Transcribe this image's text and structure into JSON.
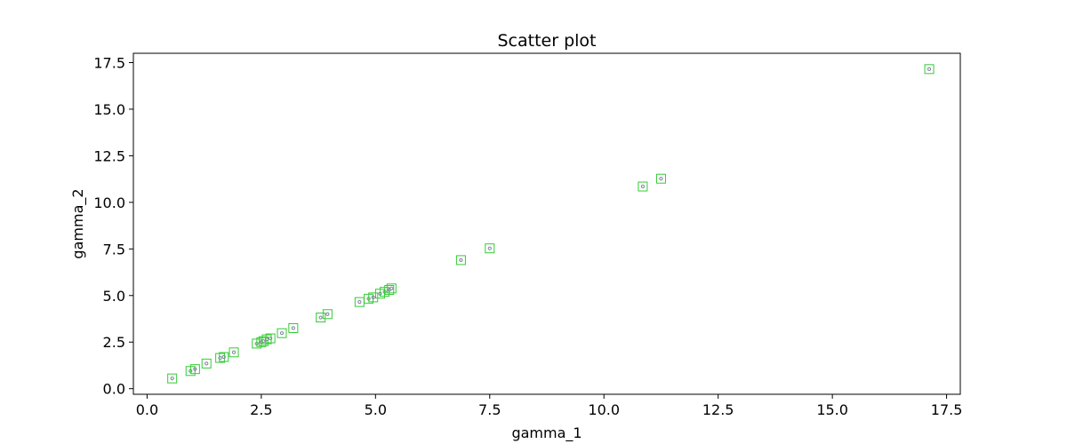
{
  "chart_data": {
    "type": "scatter",
    "title": "Scatter plot",
    "xlabel": "gamma_1",
    "ylabel": "gamma_2",
    "xlim": [
      -0.3,
      17.8
    ],
    "ylim": [
      -0.3,
      18.0
    ],
    "xticks": [
      0.0,
      2.5,
      5.0,
      7.5,
      10.0,
      12.5,
      15.0,
      17.5
    ],
    "xtick_labels": [
      "0.0",
      "2.5",
      "5.0",
      "7.5",
      "10.0",
      "12.5",
      "15.0",
      "17.5"
    ],
    "yticks": [
      0.0,
      2.5,
      5.0,
      7.5,
      10.0,
      12.5,
      15.0,
      17.5
    ],
    "ytick_labels": [
      "0.0",
      "2.5",
      "5.0",
      "7.5",
      "10.0",
      "12.5",
      "15.0",
      "17.5"
    ],
    "grid": false,
    "marker_color": "#33cc33",
    "inner_marker_color": "#7f7f9f",
    "series": [
      {
        "x": [
          0.55,
          0.95,
          1.05,
          1.3,
          1.6,
          1.68,
          1.9,
          2.4,
          2.5,
          2.55,
          2.62,
          2.7,
          2.95,
          3.2,
          3.8,
          3.95,
          4.65,
          4.85,
          4.95,
          5.1,
          5.2,
          5.3,
          5.35,
          6.87,
          7.5,
          10.85,
          11.25,
          17.12
        ],
        "y": [
          0.55,
          0.95,
          1.05,
          1.35,
          1.65,
          1.7,
          1.95,
          2.42,
          2.5,
          2.55,
          2.65,
          2.7,
          2.98,
          3.25,
          3.82,
          4.0,
          4.65,
          4.83,
          4.9,
          5.1,
          5.2,
          5.3,
          5.38,
          6.9,
          7.53,
          10.85,
          11.27,
          17.15
        ]
      }
    ]
  }
}
